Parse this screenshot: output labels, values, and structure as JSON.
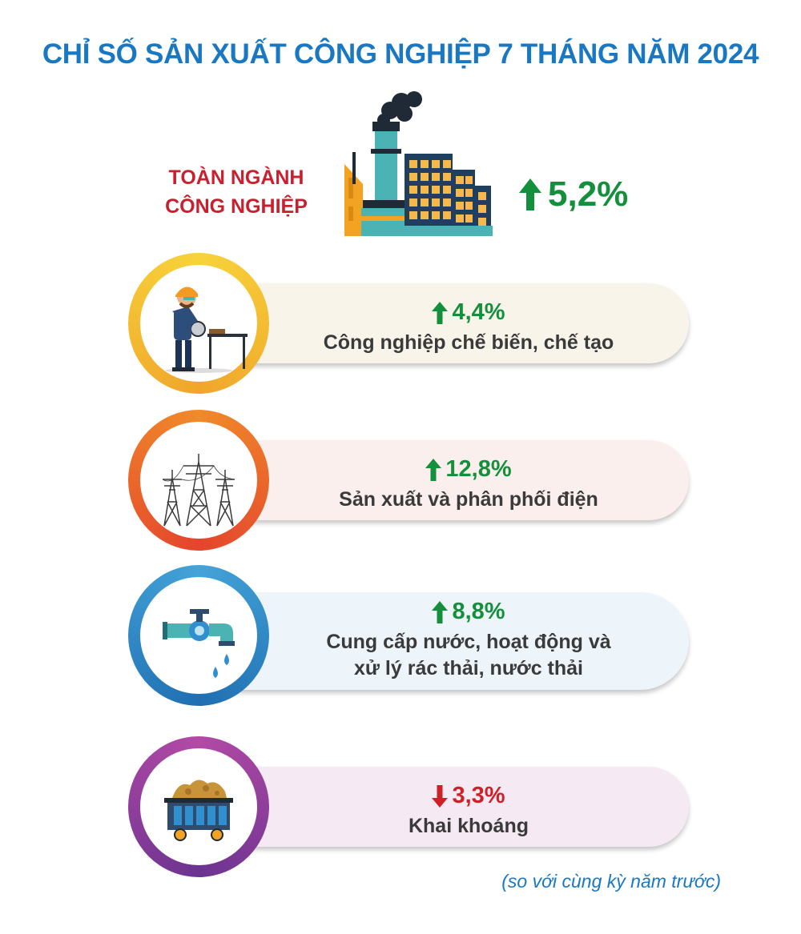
{
  "title": "CHỈ SỐ SẢN XUẤT CÔNG NGHIỆP 7 THÁNG NĂM 2024",
  "overall": {
    "label_line1": "TOÀN NGÀNH",
    "label_line2": "CÔNG NGHIỆP",
    "value": "5,2%",
    "direction": "up",
    "icon": "factory-icon"
  },
  "sectors": [
    {
      "value": "4,4%",
      "direction": "up",
      "label_lines": [
        "Công nghiệp chế biến, chế tạo"
      ],
      "icon": "worker-grinder-icon",
      "pill_color": "#f8f4ea",
      "ring_color": "#f2b530"
    },
    {
      "value": "12,8%",
      "direction": "up",
      "label_lines": [
        "Sản xuất và phân phối điện"
      ],
      "icon": "power-tower-icon",
      "pill_color": "#fbefed",
      "ring_color": "#ee6a2a"
    },
    {
      "value": "8,8%",
      "direction": "up",
      "label_lines": [
        "Cung cấp nước, hoạt động và",
        "xử lý rác thải, nước thải"
      ],
      "icon": "water-tap-icon",
      "pill_color": "#edf5fb",
      "ring_color": "#2f8fcf"
    },
    {
      "value": "3,3%",
      "direction": "down",
      "label_lines": [
        "Khai khoáng"
      ],
      "icon": "mine-cart-icon",
      "pill_color": "#f5eaf3",
      "ring_color": "#9a3d9c"
    }
  ],
  "note": "(so với cùng kỳ năm trước)",
  "colors": {
    "title": "#1a78c2",
    "up": "#14903c",
    "down": "#d01f27",
    "overall_label": "#c8202f"
  }
}
